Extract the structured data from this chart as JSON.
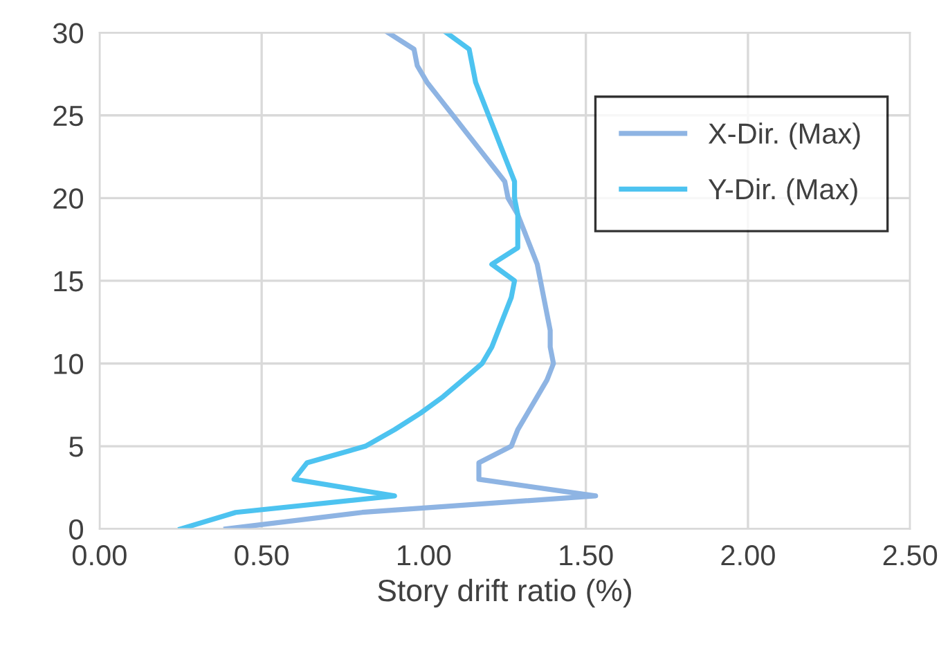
{
  "chart_data": {
    "type": "line",
    "xlabel": "Story drift ratio (%)",
    "series": [
      {
        "name": "X-Dir. (Max)",
        "color": "#8eb4e3",
        "x": [
          0.39,
          0.81,
          1.53,
          1.17,
          1.17,
          1.27,
          1.29,
          1.32,
          1.35,
          1.38,
          1.4,
          1.39,
          1.39,
          1.38,
          1.37,
          1.36,
          1.35,
          1.33,
          1.31,
          1.29,
          1.26,
          1.25,
          1.21,
          1.17,
          1.13,
          1.09,
          1.05,
          1.01,
          0.98,
          0.97,
          0.89
        ],
        "values": [
          0,
          1,
          2,
          3,
          4,
          5,
          6,
          7,
          8,
          9,
          10,
          11,
          12,
          13,
          14,
          15,
          16,
          17,
          18,
          19,
          20,
          21,
          22,
          23,
          24,
          25,
          26,
          27,
          28,
          29,
          30
        ]
      },
      {
        "name": "Y-Dir. (Max)",
        "color": "#4dc3f0",
        "x": [
          0.25,
          0.42,
          0.91,
          0.6,
          0.64,
          0.82,
          0.91,
          0.99,
          1.06,
          1.12,
          1.18,
          1.21,
          1.23,
          1.25,
          1.27,
          1.28,
          1.21,
          1.29,
          1.29,
          1.29,
          1.28,
          1.28,
          1.26,
          1.24,
          1.22,
          1.2,
          1.18,
          1.16,
          1.15,
          1.14,
          1.07
        ],
        "values": [
          0,
          1,
          2,
          3,
          4,
          5,
          6,
          7,
          8,
          9,
          10,
          11,
          12,
          13,
          14,
          15,
          16,
          17,
          18,
          19,
          20,
          21,
          22,
          23,
          24,
          25,
          26,
          27,
          28,
          29,
          30
        ]
      }
    ],
    "xlim": [
      0,
      2.5
    ],
    "xticks": [
      {
        "value": 0,
        "label": "0.00"
      },
      {
        "value": 0.5,
        "label": "0.50"
      },
      {
        "value": 1.0,
        "label": "1.00"
      },
      {
        "value": 1.5,
        "label": "1.50"
      },
      {
        "value": 2.0,
        "label": "2.00"
      },
      {
        "value": 2.5,
        "label": "2.50"
      }
    ],
    "ylim": [
      0,
      30
    ],
    "yticks": [
      0,
      5,
      10,
      15,
      20,
      25,
      30
    ],
    "grid": true,
    "legend": "top right",
    "marker": "none",
    "line_style": "solid"
  }
}
